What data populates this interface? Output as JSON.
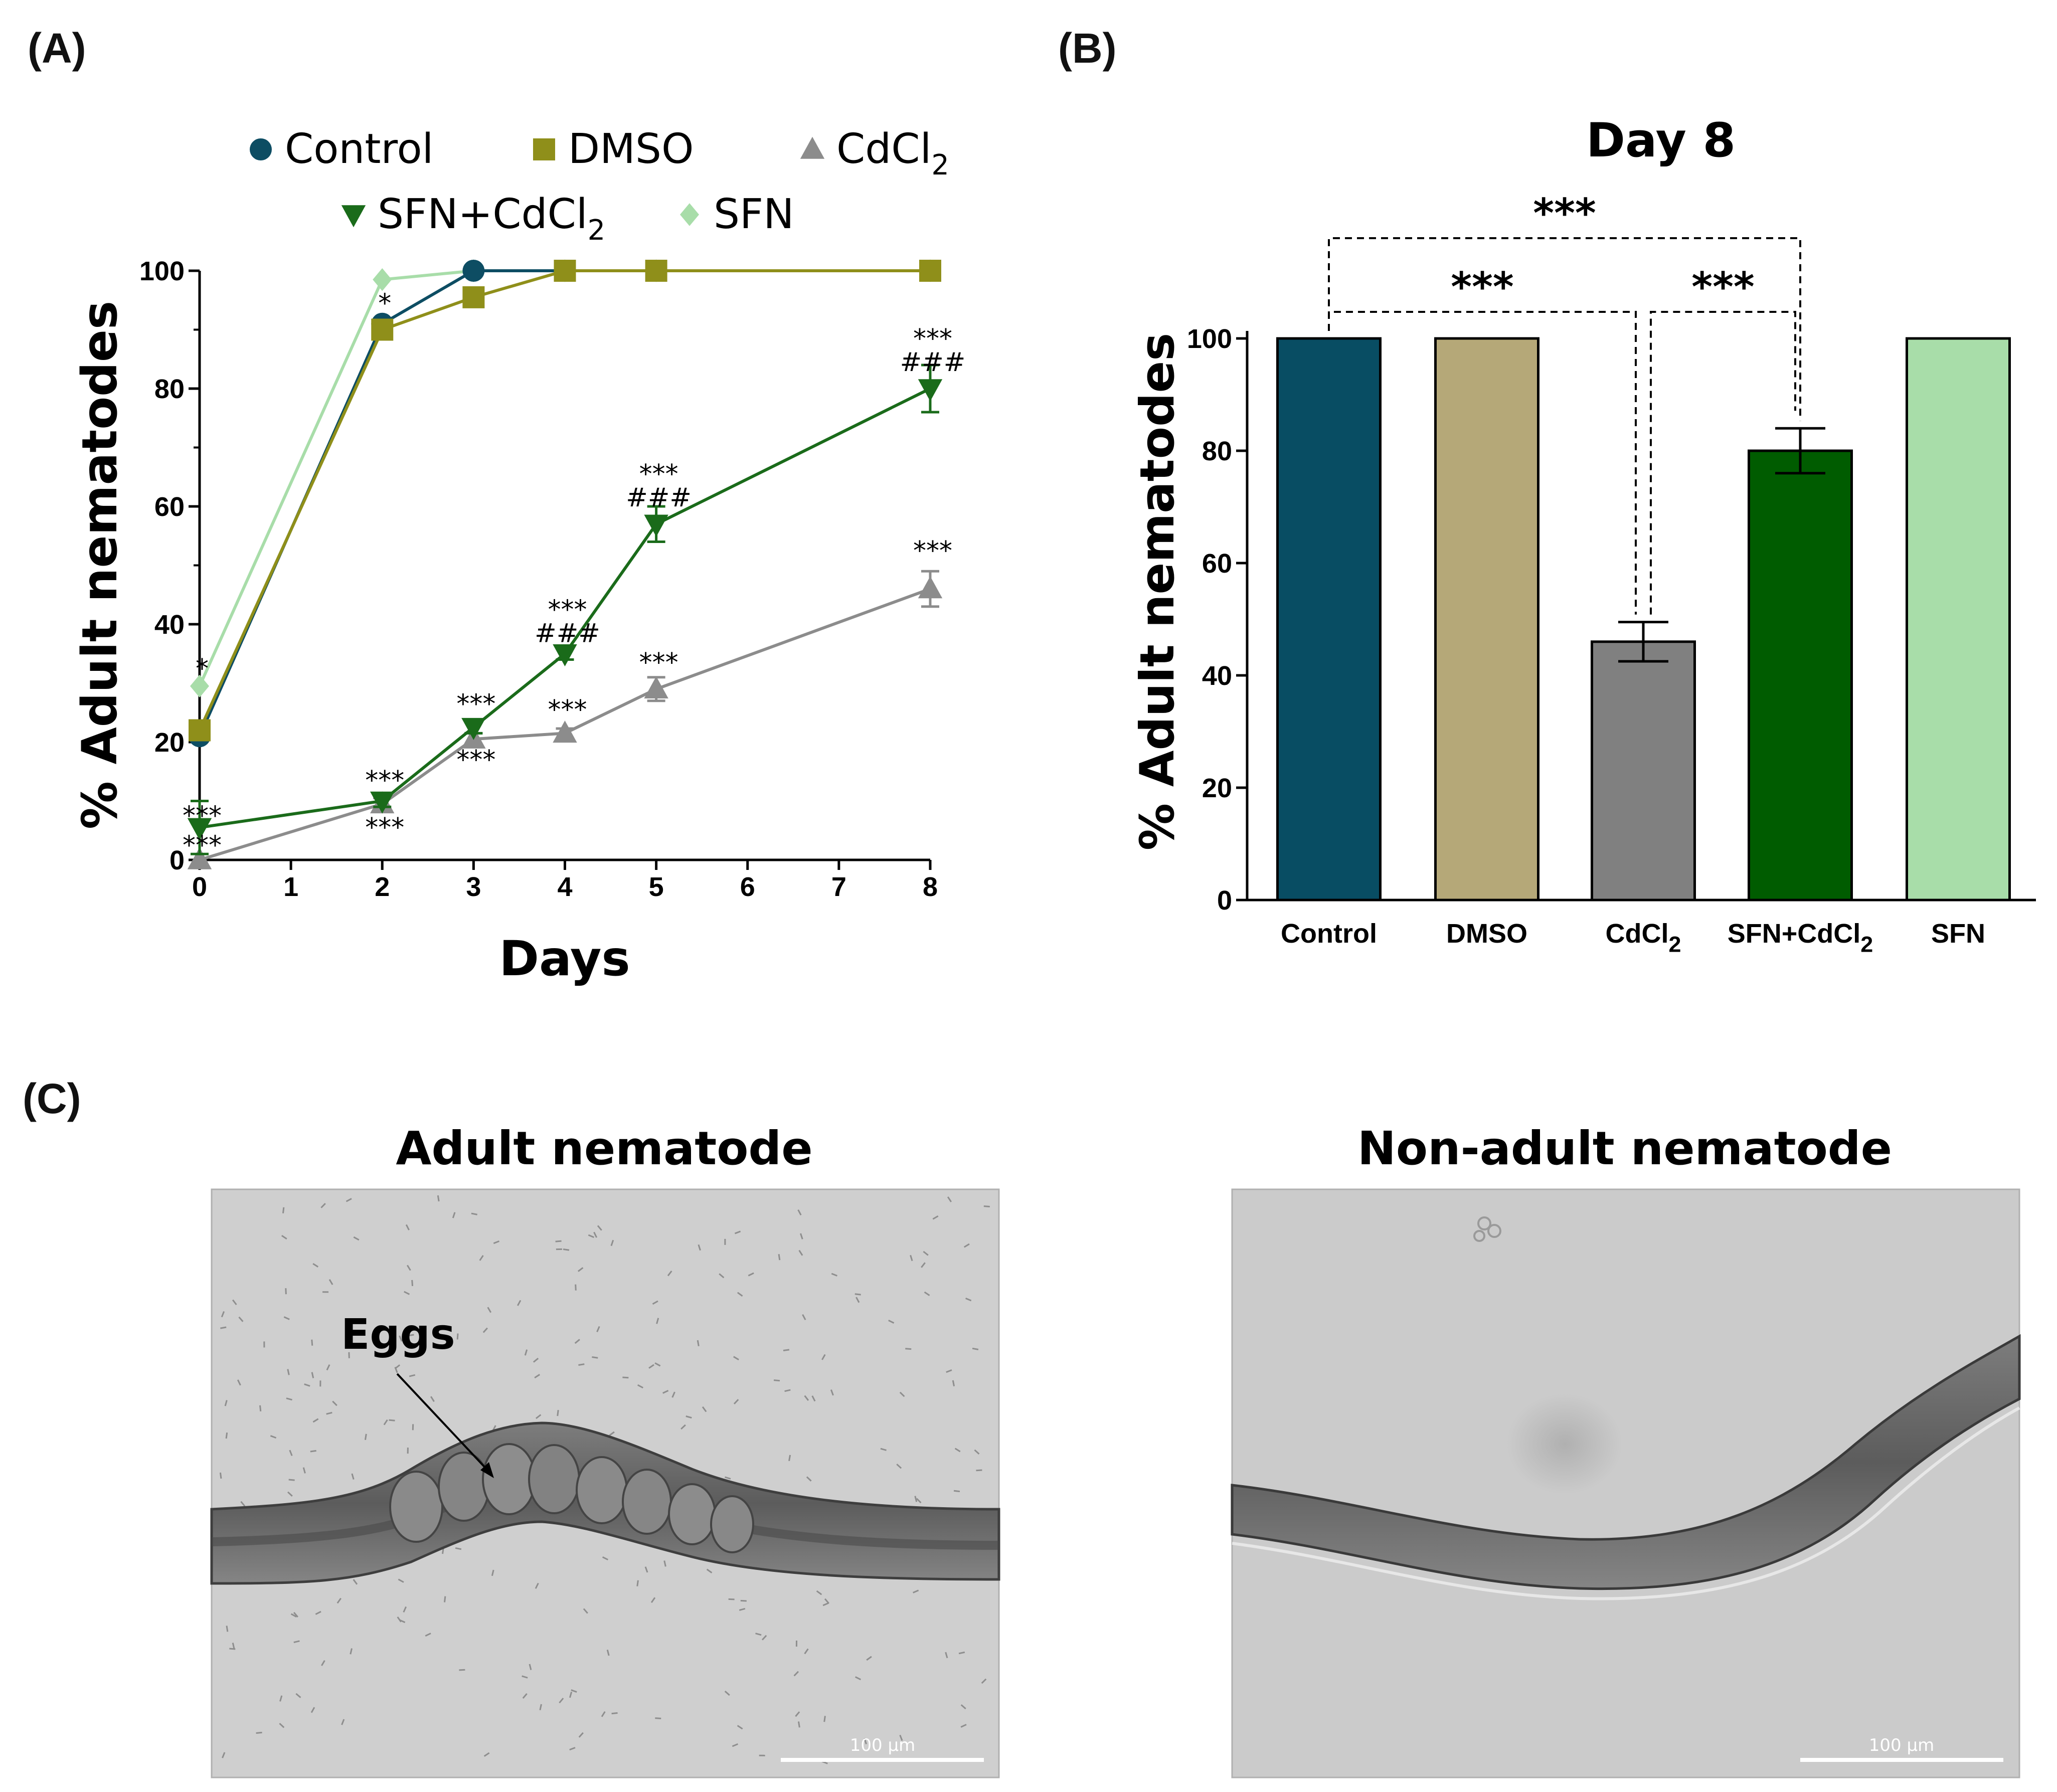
{
  "panels": {
    "a": "(A)",
    "b": "(B)",
    "c": "(C)"
  },
  "chart_data": [
    {
      "type": "line",
      "panel": "(A)",
      "title": "",
      "xlabel": "Days",
      "ylabel": "% Adult nematodes",
      "x": [
        0,
        2,
        3,
        4,
        5,
        8
      ],
      "xticks": [
        "0",
        "1",
        "2",
        "3",
        "4",
        "5",
        "6",
        "7",
        "8"
      ],
      "yticks": [
        "0",
        "20",
        "40",
        "60",
        "80",
        "100"
      ],
      "ylim": [
        0,
        100
      ],
      "legend_position": "top",
      "series": [
        {
          "name": "Control",
          "marker": "circle",
          "color": "#0d4d63",
          "values": [
            21,
            91,
            100,
            100,
            100,
            100
          ],
          "errors": [
            0,
            0,
            0,
            0,
            0,
            0
          ]
        },
        {
          "name": "DMSO",
          "marker": "square",
          "color": "#8f8f1a",
          "values": [
            22,
            90,
            95.5,
            100,
            100,
            100
          ],
          "errors": [
            0,
            0,
            0,
            0,
            0,
            0
          ]
        },
        {
          "name": "CdCl2",
          "label_main": "CdCl",
          "label_sub": "2",
          "marker": "triangle-up",
          "color": "#8c8c8c",
          "values": [
            0,
            9.5,
            20.5,
            21.5,
            29,
            46
          ],
          "errors": [
            0,
            1,
            1,
            0.8,
            2,
            3
          ]
        },
        {
          "name": "SFN+CdCl2",
          "label_main": "SFN+CdCl",
          "label_sub": "2",
          "marker": "triangle-down",
          "color": "#1a6b1a",
          "values": [
            5.5,
            10,
            22.5,
            35,
            57,
            80
          ],
          "errors": [
            4.5,
            1,
            1,
            1,
            3,
            4
          ]
        },
        {
          "name": "SFN",
          "marker": "diamond",
          "color": "#a8dda9",
          "values": [
            29.5,
            98.5,
            100,
            100,
            100,
            100
          ],
          "errors": [
            0,
            0,
            0,
            0,
            0,
            0
          ]
        }
      ],
      "annotations": [
        {
          "text": "*",
          "x": 0,
          "y": 31
        },
        {
          "text": "***",
          "x": 0,
          "y": 6
        },
        {
          "text": "***",
          "x": 0,
          "y": 1
        },
        {
          "text": "*",
          "x": 2,
          "y": 93
        },
        {
          "text": "***",
          "x": 2,
          "y": 12
        },
        {
          "text": "***",
          "x": 2,
          "y": 4
        },
        {
          "text": "***",
          "x": 3,
          "y": 25
        },
        {
          "text": "***",
          "x": 3,
          "y": 15.5
        },
        {
          "text": "***",
          "x": 4,
          "y": 24
        },
        {
          "text": "***",
          "x": 4,
          "y": 41
        },
        {
          "text": "###",
          "x": 4,
          "y": 37
        },
        {
          "text": "***",
          "x": 5,
          "y": 64
        },
        {
          "text": "###",
          "x": 5,
          "y": 60
        },
        {
          "text": "***",
          "x": 5,
          "y": 32
        },
        {
          "text": "***",
          "x": 8,
          "y": 87
        },
        {
          "text": "###",
          "x": 8,
          "y": 83
        },
        {
          "text": "***",
          "x": 8,
          "y": 51
        }
      ]
    },
    {
      "type": "bar",
      "panel": "(B)",
      "title": "Day 8",
      "xlabel": "",
      "ylabel": "% Adult nematodes",
      "categories": [
        "Control",
        "DMSO",
        "CdCl2",
        "SFN+CdCl2",
        "SFN"
      ],
      "category_labels": [
        {
          "main": "Control",
          "sub": ""
        },
        {
          "main": "DMSO",
          "sub": ""
        },
        {
          "main": "CdCl",
          "sub": "2"
        },
        {
          "main": "SFN+CdCl",
          "sub": "2"
        },
        {
          "main": "SFN",
          "sub": ""
        }
      ],
      "values": [
        100,
        100,
        46,
        80,
        100
      ],
      "errors": [
        0,
        0,
        3.5,
        4,
        0
      ],
      "colors": [
        "#084d63",
        "#b5a878",
        "#808080",
        "#005c00",
        "#a8dda9"
      ],
      "yticks": [
        "0",
        "20",
        "40",
        "60",
        "80",
        "100"
      ],
      "ylim": [
        0,
        100
      ],
      "significance": [
        {
          "from": "Control",
          "to": "SFN+CdCl2",
          "text": "***"
        },
        {
          "from": "Control",
          "to": "CdCl2",
          "text": "***"
        },
        {
          "from": "CdCl2",
          "to": "SFN+CdCl2",
          "text": "***"
        }
      ]
    }
  ],
  "micrographs": {
    "left": {
      "title": "Adult nematode",
      "annotation": "Eggs",
      "scale_bar": "100 µm"
    },
    "right": {
      "title": "Non-adult nematode",
      "scale_bar": "100 µm"
    }
  }
}
